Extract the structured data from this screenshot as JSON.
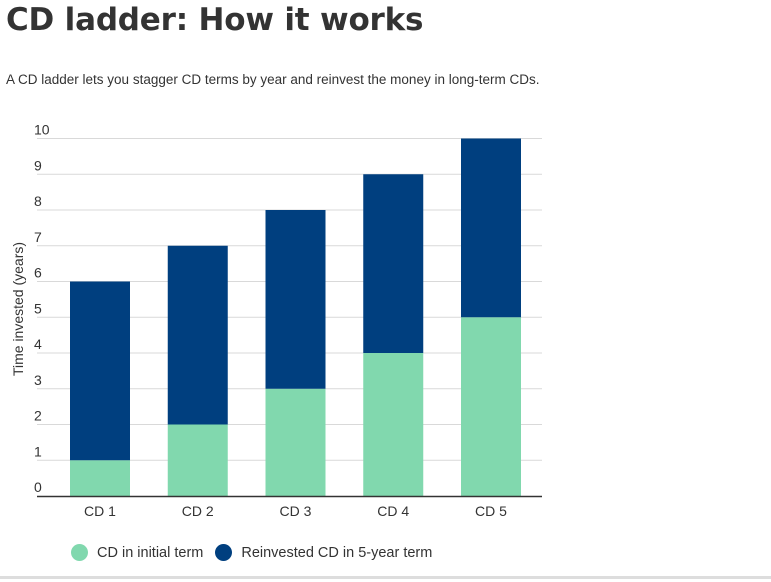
{
  "header": {
    "title": "CD ladder: How it works",
    "subtitle": "A CD ladder lets you stagger CD terms by year and reinvest the money in long-term CDs."
  },
  "chart_data": {
    "type": "bar",
    "stacked": true,
    "categories": [
      "CD 1",
      "CD 2",
      "CD 3",
      "CD 4",
      "CD 5"
    ],
    "series": [
      {
        "name": "CD in initial term",
        "values": [
          1,
          2,
          3,
          4,
          5
        ],
        "color": "#81d8ae"
      },
      {
        "name": "Reinvested CD in 5-year term",
        "values": [
          5,
          5,
          5,
          5,
          5
        ],
        "color": "#003f7f"
      }
    ],
    "title": "CD ladder: How it works",
    "xlabel": "",
    "ylabel": "Time invested (years)",
    "ylim": [
      0,
      10
    ],
    "yticks": [
      "0",
      "1",
      "2",
      "3",
      "4",
      "5",
      "6",
      "7",
      "8",
      "9",
      "10"
    ],
    "grid": true,
    "legend_position": "bottom"
  },
  "colors": {
    "gridline": "#d9d9d9",
    "axis": "#333333",
    "text": "#333333"
  }
}
